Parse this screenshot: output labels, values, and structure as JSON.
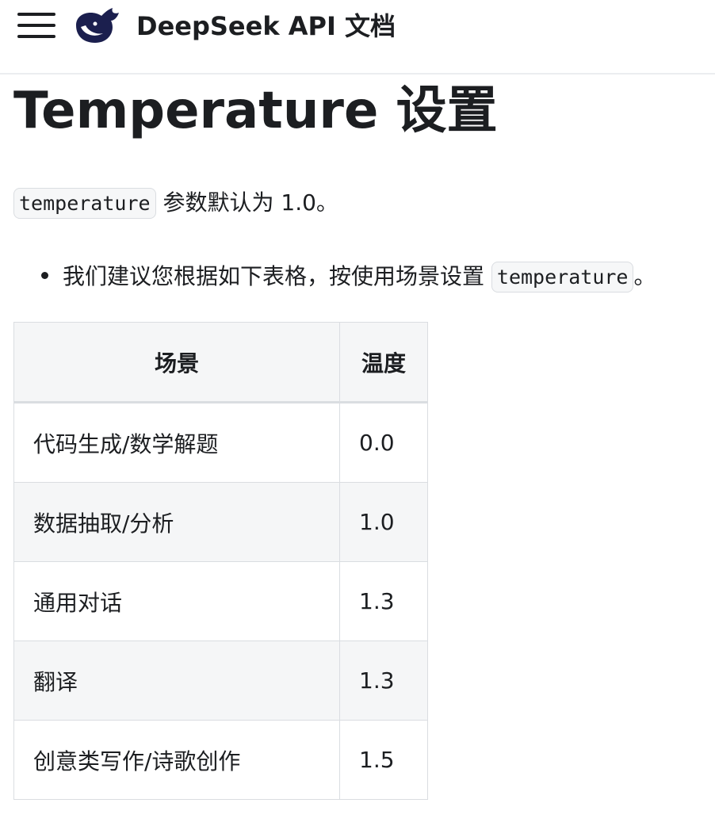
{
  "header": {
    "brand": "DeepSeek API 文档",
    "logo_color": "#1b1f4e"
  },
  "page_title": "Temperature 设置",
  "intro": {
    "code": "temperature",
    "text": " 参数默认为 1.0。"
  },
  "bullet": {
    "text": "我们建议您根据如下表格，按使用场景设置 ",
    "code": "temperature",
    "suffix": "。"
  },
  "table": {
    "headers": [
      "场景",
      "温度"
    ],
    "rows": [
      [
        "代码生成/数学解题",
        "0.0"
      ],
      [
        "数据抽取/分析",
        "1.0"
      ],
      [
        "通用对话",
        "1.3"
      ],
      [
        "翻译",
        "1.3"
      ],
      [
        "创意类写作/诗歌创作",
        "1.5"
      ]
    ]
  }
}
